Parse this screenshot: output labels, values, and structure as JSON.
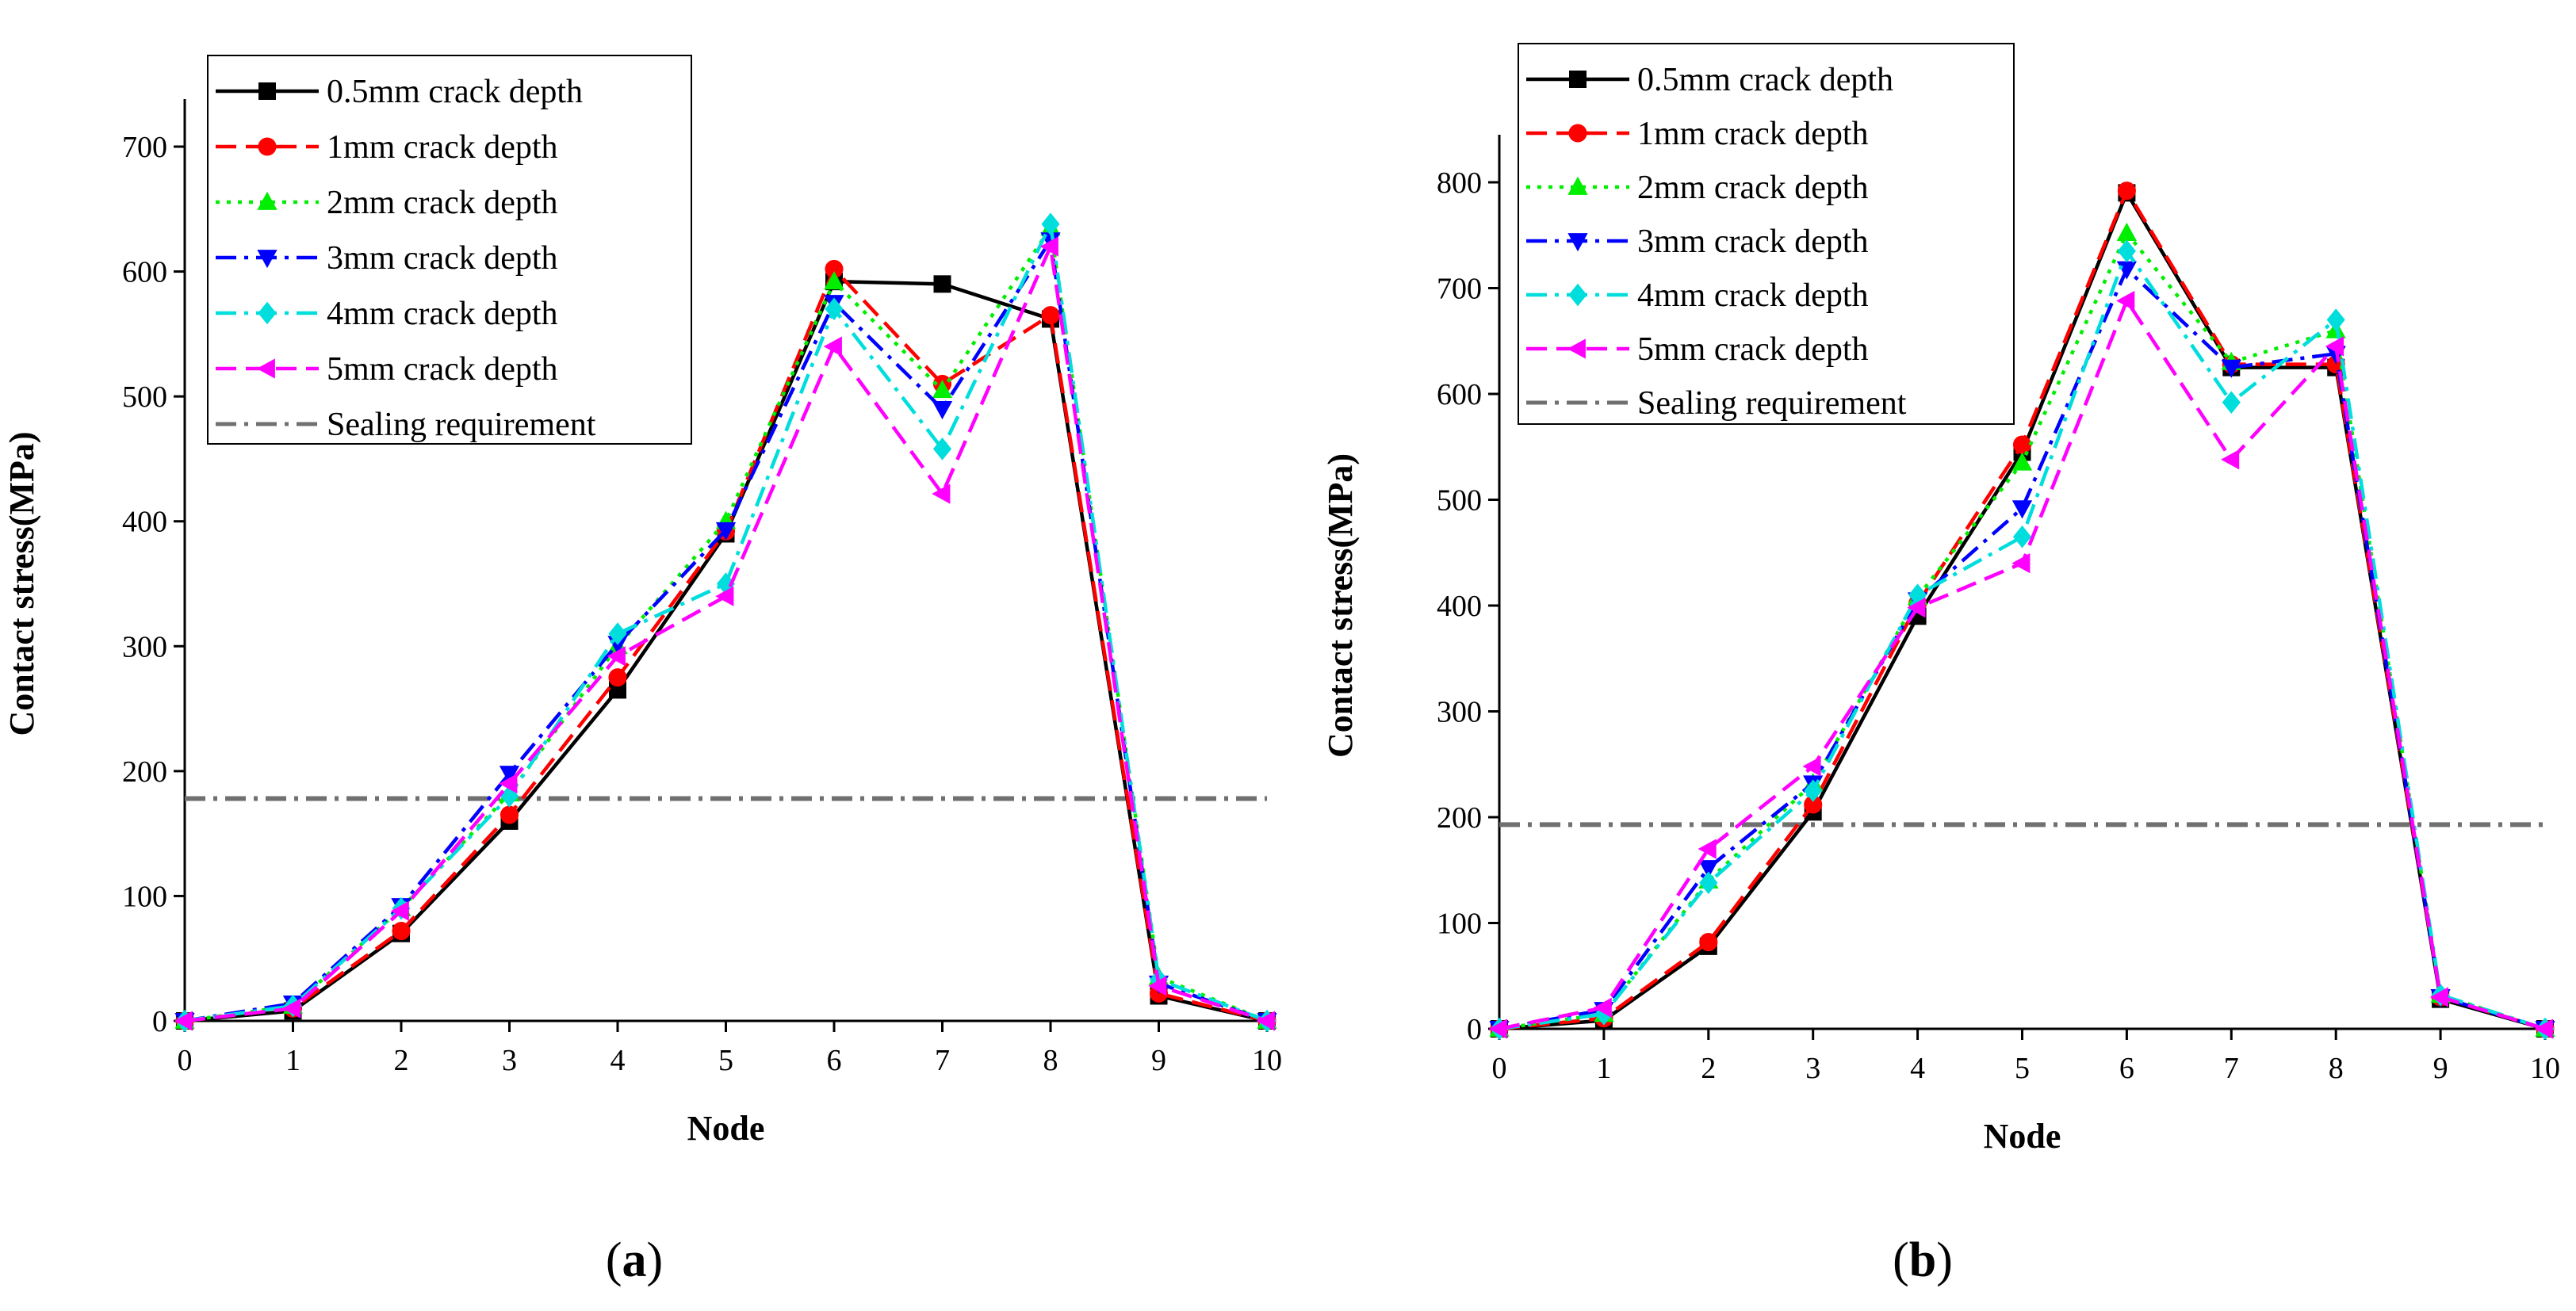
{
  "figure": {
    "legend_labels": [
      "0.5mm crack depth",
      "1mm crack depth",
      "2mm crack depth",
      "3mm crack depth",
      "4mm crack depth",
      "5mm crack depth",
      "Sealing requirement"
    ]
  },
  "chart_data": [
    {
      "panel_label": "a",
      "type": "line",
      "xlabel": "Node",
      "ylabel": "Contact stress(MPa)",
      "xlim": [
        0,
        10
      ],
      "ylim": [
        0,
        700
      ],
      "xticks": [
        0,
        1,
        2,
        3,
        4,
        5,
        6,
        7,
        8,
        9,
        10
      ],
      "yticks": [
        0,
        100,
        200,
        300,
        400,
        500,
        600,
        700
      ],
      "x": [
        0,
        1,
        2,
        3,
        4,
        5,
        6,
        7,
        8,
        9,
        10
      ],
      "legend_position": "top-left",
      "series": [
        {
          "name": "0.5mm crack depth",
          "color": "#000000",
          "marker": "square",
          "dash": "solid",
          "values": [
            0,
            8,
            70,
            160,
            265,
            390,
            592,
            590,
            562,
            20,
            0
          ]
        },
        {
          "name": "1mm crack depth",
          "color": "#ff0000",
          "marker": "circle",
          "dash": "dash",
          "values": [
            0,
            10,
            72,
            165,
            275,
            392,
            602,
            510,
            565,
            22,
            0
          ]
        },
        {
          "name": "2mm crack depth",
          "color": "#00ee00",
          "marker": "triangle-up",
          "dash": "dot",
          "values": [
            0,
            12,
            90,
            182,
            300,
            400,
            592,
            505,
            635,
            35,
            0
          ]
        },
        {
          "name": "3mm crack depth",
          "color": "#0000ff",
          "marker": "triangle-down",
          "dash": "dashdot",
          "values": [
            0,
            14,
            92,
            198,
            302,
            393,
            575,
            490,
            625,
            30,
            0
          ]
        },
        {
          "name": "4mm crack depth",
          "color": "#00dddd",
          "marker": "diamond",
          "dash": "dashdot",
          "values": [
            0,
            12,
            90,
            180,
            310,
            350,
            570,
            458,
            638,
            33,
            0
          ]
        },
        {
          "name": "5mm crack depth",
          "color": "#ff00ff",
          "marker": "triangle-left",
          "dash": "dash",
          "values": [
            0,
            10,
            88,
            190,
            292,
            340,
            540,
            422,
            620,
            28,
            0
          ]
        }
      ],
      "reference_line": {
        "name": "Sealing requirement",
        "y": 178,
        "color": "#707070",
        "dash": "dashdot"
      }
    },
    {
      "panel_label": "b",
      "type": "line",
      "xlabel": "Node",
      "ylabel": "Contact stress(MPa)",
      "xlim": [
        0,
        10
      ],
      "ylim": [
        0,
        800
      ],
      "xticks": [
        0,
        1,
        2,
        3,
        4,
        5,
        6,
        7,
        8,
        9,
        10
      ],
      "yticks": [
        0,
        100,
        200,
        300,
        400,
        500,
        600,
        700,
        800
      ],
      "x": [
        0,
        1,
        2,
        3,
        4,
        5,
        6,
        7,
        8,
        9,
        10
      ],
      "legend_position": "top-left",
      "series": [
        {
          "name": "0.5mm crack depth",
          "color": "#000000",
          "marker": "square",
          "dash": "solid",
          "values": [
            0,
            8,
            78,
            205,
            390,
            545,
            790,
            625,
            625,
            28,
            0
          ]
        },
        {
          "name": "1mm crack depth",
          "color": "#ff0000",
          "marker": "circle",
          "dash": "dash",
          "values": [
            0,
            10,
            82,
            212,
            402,
            552,
            792,
            628,
            628,
            30,
            0
          ]
        },
        {
          "name": "2mm crack depth",
          "color": "#00ee00",
          "marker": "triangle-up",
          "dash": "dot",
          "values": [
            0,
            14,
            140,
            232,
            408,
            535,
            752,
            630,
            660,
            32,
            0
          ]
        },
        {
          "name": "3mm crack depth",
          "color": "#0000ff",
          "marker": "triangle-down",
          "dash": "dashdot",
          "values": [
            0,
            18,
            152,
            232,
            405,
            492,
            718,
            625,
            638,
            30,
            0
          ]
        },
        {
          "name": "4mm crack depth",
          "color": "#00dddd",
          "marker": "diamond",
          "dash": "dashdot",
          "values": [
            0,
            14,
            138,
            225,
            410,
            465,
            735,
            592,
            670,
            32,
            0
          ]
        },
        {
          "name": "5mm crack depth",
          "color": "#ff00ff",
          "marker": "triangle-left",
          "dash": "dash",
          "values": [
            0,
            20,
            170,
            248,
            398,
            440,
            688,
            538,
            645,
            30,
            0
          ]
        }
      ],
      "reference_line": {
        "name": "Sealing requirement",
        "y": 193,
        "color": "#707070",
        "dash": "dashdot"
      }
    }
  ]
}
